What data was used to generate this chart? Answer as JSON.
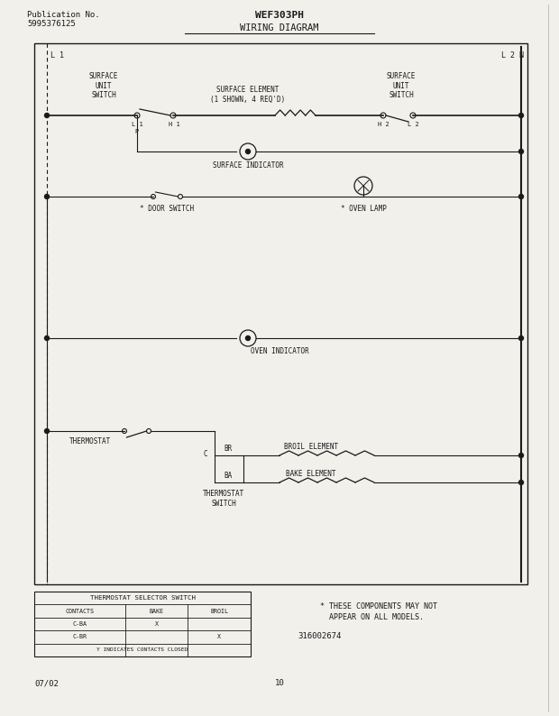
{
  "title": "WEF303PH",
  "subtitle": "WIRING DIAGRAM",
  "pub_no_line1": "Publication No.",
  "pub_no_line2": "5995376125",
  "date": "07/02",
  "page": "10",
  "part_no": "316002674",
  "note_line1": "* THESE COMPONENTS MAY NOT",
  "note_line2": "  APPEAR ON ALL MODELS.",
  "bg_color": "#f2f0eb",
  "line_color": "#1a1a1a",
  "table_title": "THERMOSTAT SELECTOR SWITCH",
  "table_headers": [
    "CONTACTS",
    "BAKE",
    "BROIL"
  ],
  "table_rows": [
    [
      "C-BA",
      "X",
      ""
    ],
    [
      "C-BR",
      "",
      "X"
    ]
  ],
  "table_note": "Y INDICATES CONTACTS CLOSED"
}
